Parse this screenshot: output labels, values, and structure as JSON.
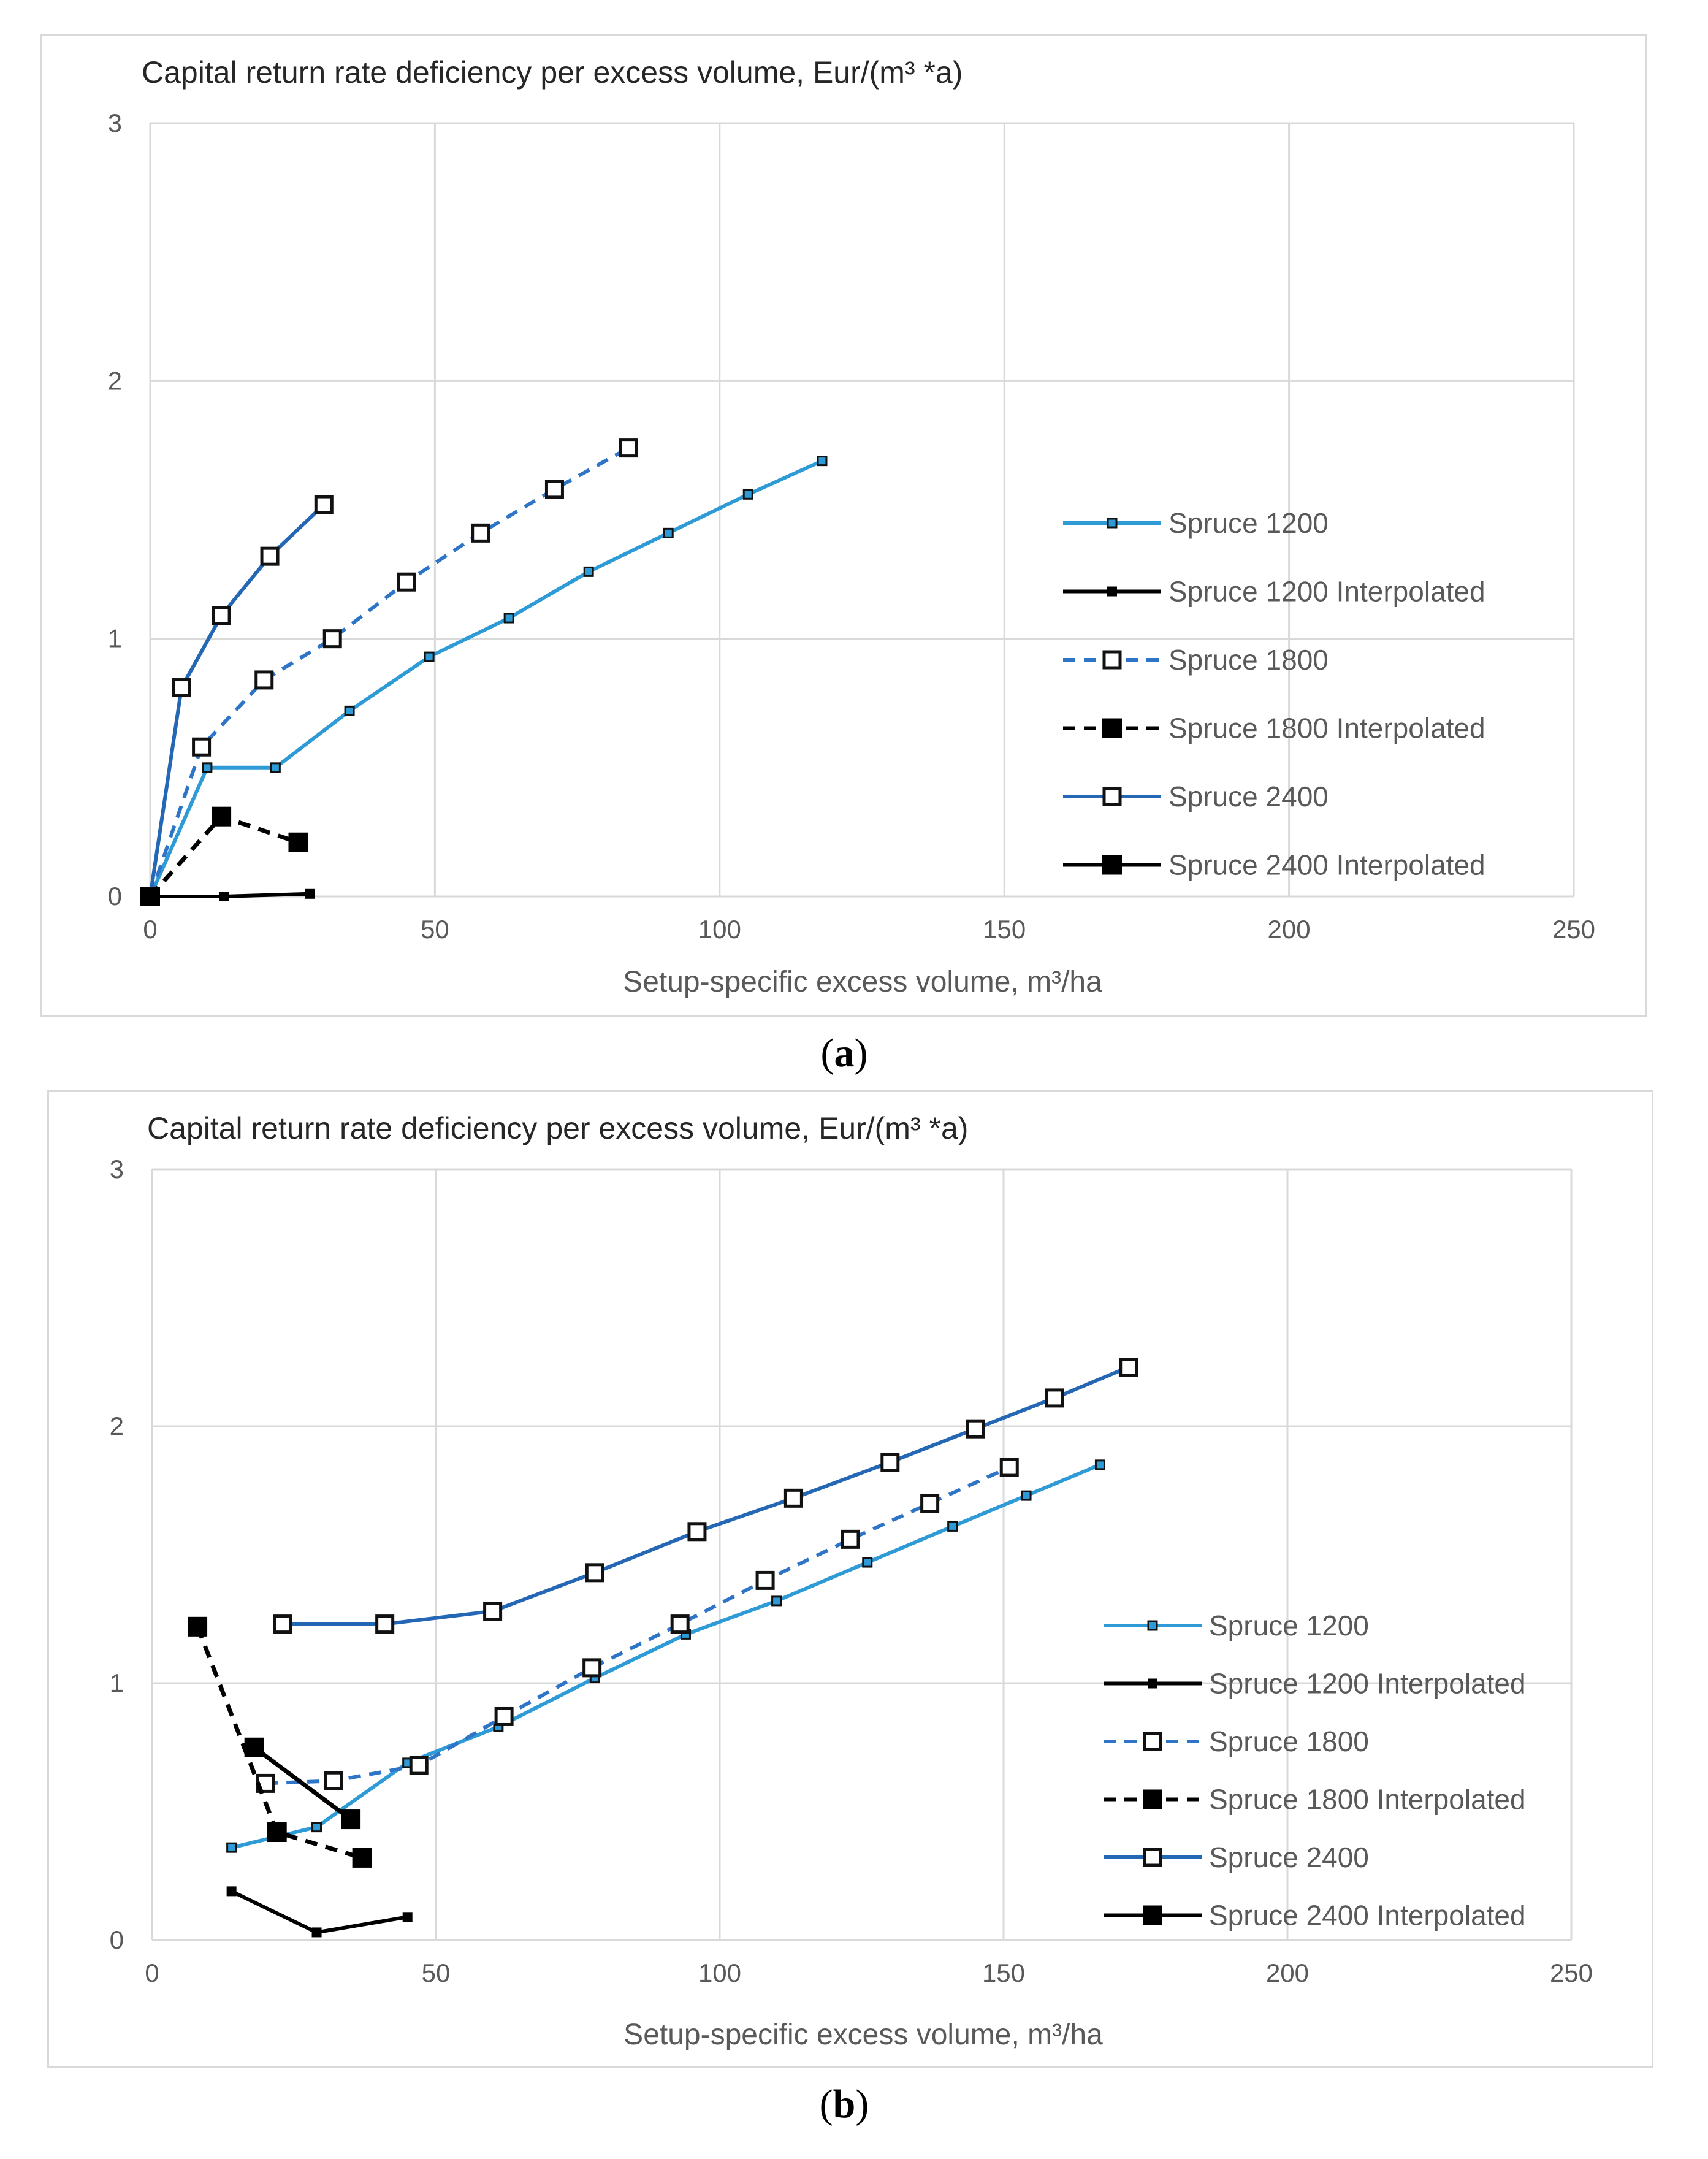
{
  "chart_data": [
    {
      "type": "line",
      "panel_label_open": "(",
      "panel_label_letter": "a",
      "panel_label_close": ")",
      "title": "Capital return rate deficiency per excess volume,  Eur/(m³ *a)",
      "xlabel": "Setup-specific excess volume, m³/ha",
      "ylabel": "",
      "xlim": [
        0,
        250
      ],
      "ylim": [
        0,
        3
      ],
      "x_ticks": [
        0,
        50,
        100,
        150,
        200,
        250
      ],
      "y_ticks": [
        0,
        1,
        2,
        3
      ],
      "grid": true,
      "legend_position": "right",
      "series": [
        {
          "name": "Spruce 1200",
          "color": "#2e9bd6",
          "dash": "solid",
          "marker": "small-square",
          "points": [
            [
              0,
              0
            ],
            [
              10,
              0.5
            ],
            [
              22,
              0.5
            ],
            [
              35,
              0.72
            ],
            [
              49,
              0.93
            ],
            [
              63,
              1.08
            ],
            [
              77,
              1.26
            ],
            [
              91,
              1.41
            ],
            [
              105,
              1.56
            ],
            [
              118,
              1.69
            ]
          ]
        },
        {
          "name": "Spruce 1200 Interpolated",
          "color": "#000000",
          "dash": "solid",
          "marker": "small-filled",
          "points": [
            [
              0,
              0
            ],
            [
              13,
              0
            ],
            [
              28,
              0.01
            ]
          ]
        },
        {
          "name": "Spruce 1800",
          "color": "#2e75c8",
          "dash": "dashed",
          "marker": "open-square",
          "points": [
            [
              0,
              0
            ],
            [
              9,
              0.58
            ],
            [
              20,
              0.84
            ],
            [
              32,
              1.0
            ],
            [
              45,
              1.22
            ],
            [
              58,
              1.41
            ],
            [
              71,
              1.58
            ],
            [
              84,
              1.74
            ]
          ]
        },
        {
          "name": "Spruce 1800 Interpolated",
          "color": "#000000",
          "dash": "dashed",
          "marker": "large-filled",
          "points": [
            [
              0,
              0
            ],
            [
              12.5,
              0.31
            ],
            [
              26,
              0.21
            ]
          ]
        },
        {
          "name": "Spruce 2400",
          "color": "#2467b4",
          "dash": "solid",
          "marker": "open-square",
          "points": [
            [
              0,
              0
            ],
            [
              5.5,
              0.81
            ],
            [
              12.5,
              1.09
            ],
            [
              21,
              1.32
            ],
            [
              30.5,
              1.52
            ]
          ]
        },
        {
          "name": "Spruce 2400 Interpolated",
          "color": "#000000",
          "dash": "solid",
          "marker": "large-filled",
          "points": [
            [
              0,
              0
            ]
          ]
        }
      ]
    },
    {
      "type": "line",
      "panel_label_open": "(",
      "panel_label_letter": "b",
      "panel_label_close": ")",
      "title": "Capital return rate deficiency per excess volume,  Eur/(m³ *a)",
      "xlabel": "Setup-specific excess volume, m³/ha",
      "ylabel": "",
      "xlim": [
        0,
        250
      ],
      "ylim": [
        0,
        3
      ],
      "x_ticks": [
        0,
        50,
        100,
        150,
        200,
        250
      ],
      "y_ticks": [
        0,
        1,
        2,
        3
      ],
      "grid": true,
      "legend_position": "right",
      "series": [
        {
          "name": "Spruce 1200",
          "color": "#2e9bd6",
          "dash": "solid",
          "marker": "small-square",
          "points": [
            [
              14,
              0.36
            ],
            [
              29,
              0.44
            ],
            [
              45,
              0.69
            ],
            [
              61,
              0.83
            ],
            [
              78,
              1.02
            ],
            [
              94,
              1.19
            ],
            [
              110,
              1.32
            ],
            [
              126,
              1.47
            ],
            [
              141,
              1.61
            ],
            [
              154,
              1.73
            ],
            [
              167,
              1.85
            ]
          ]
        },
        {
          "name": "Spruce 1200 Interpolated",
          "color": "#000000",
          "dash": "solid",
          "marker": "small-filled",
          "points": [
            [
              14,
              0.19
            ],
            [
              29,
              0.03
            ],
            [
              45,
              0.09
            ]
          ]
        },
        {
          "name": "Spruce 1800",
          "color": "#2e75c8",
          "dash": "dashed",
          "marker": "open-square",
          "points": [
            [
              20,
              0.61
            ],
            [
              32,
              0.62
            ],
            [
              47,
              0.68
            ],
            [
              62,
              0.87
            ],
            [
              77.5,
              1.06
            ],
            [
              93,
              1.23
            ],
            [
              108,
              1.4
            ],
            [
              123,
              1.56
            ],
            [
              137,
              1.7
            ],
            [
              151,
              1.84
            ]
          ]
        },
        {
          "name": "Spruce 1800 Interpolated",
          "color": "#000000",
          "dash": "dashed",
          "marker": "large-filled",
          "points": [
            [
              8,
              1.22
            ],
            [
              22,
              0.42
            ],
            [
              37,
              0.32
            ]
          ]
        },
        {
          "name": "Spruce 2400",
          "color": "#2467b4",
          "dash": "solid",
          "marker": "open-square",
          "points": [
            [
              23,
              1.23
            ],
            [
              41,
              1.23
            ],
            [
              60,
              1.28
            ],
            [
              78,
              1.43
            ],
            [
              96,
              1.59
            ],
            [
              113,
              1.72
            ],
            [
              130,
              1.86
            ],
            [
              145,
              1.99
            ],
            [
              159,
              2.11
            ],
            [
              172,
              2.23
            ]
          ]
        },
        {
          "name": "Spruce 2400 Interpolated",
          "color": "#000000",
          "dash": "solid",
          "marker": "large-filled",
          "points": [
            [
              18,
              0.75
            ],
            [
              35,
              0.47
            ]
          ]
        }
      ]
    }
  ]
}
